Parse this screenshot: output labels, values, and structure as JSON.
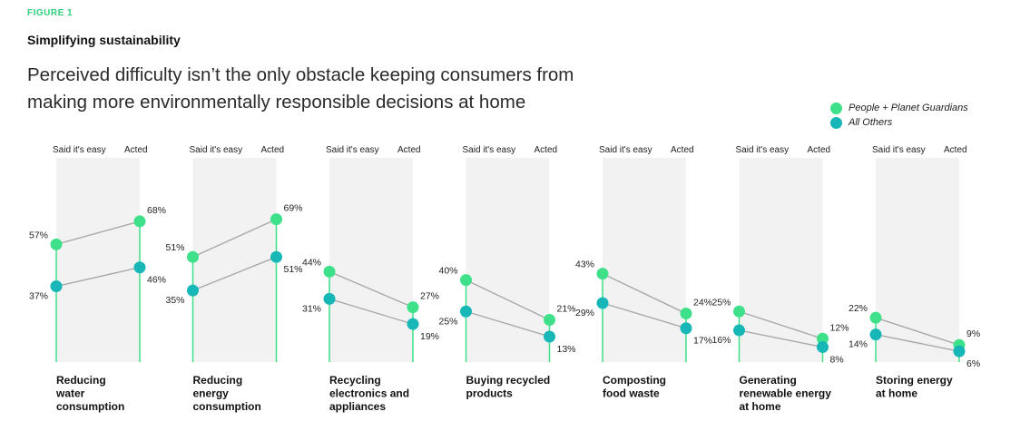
{
  "figure_label": "FIGURE 1",
  "title": "Simplifying sustainability",
  "subtitle": "Perceived difficulty isn’t the only obstacle keeping consumers from making more environmentally responsible decisions at home",
  "legend": {
    "guardians": "People + Planet Guardians",
    "others": "All Others"
  },
  "colors": {
    "guardians": "#3ee089",
    "others": "#16b7b6",
    "line": "#a9a9a9",
    "stem": "#3ee089",
    "band": "#f2f2f2"
  },
  "chart_data": {
    "type": "line",
    "col_left_label": "Said it's easy",
    "col_right_label": "Acted",
    "ylim": [
      0,
      80
    ],
    "panels": [
      {
        "category": [
          "Reducing",
          "water",
          "consumption"
        ],
        "guardians": [
          57,
          68
        ],
        "others": [
          37,
          46
        ],
        "labels": {
          "g_easy": "57%",
          "g_acted": "68%",
          "o_easy": "37%",
          "o_acted": "46%"
        }
      },
      {
        "category": [
          "Reducing",
          "energy",
          "consumption"
        ],
        "guardians": [
          51,
          69
        ],
        "others": [
          35,
          51
        ],
        "labels": {
          "g_easy": "51%",
          "g_acted": "69%",
          "o_easy": "35%",
          "o_acted": "51%"
        }
      },
      {
        "category": [
          "Recycling",
          "electronics and",
          "appliances"
        ],
        "guardians": [
          44,
          27
        ],
        "others": [
          31,
          19
        ],
        "labels": {
          "g_easy": "44%",
          "g_acted": "27%",
          "o_easy": "31%",
          "o_acted": "19%"
        }
      },
      {
        "category": [
          "Buying recycled",
          "products"
        ],
        "guardians": [
          40,
          21
        ],
        "others": [
          25,
          13
        ],
        "labels": {
          "g_easy": "40%",
          "g_acted": "21%",
          "o_easy": "25%",
          "o_acted": "13%"
        }
      },
      {
        "category": [
          "Composting",
          "food waste"
        ],
        "guardians": [
          43,
          24
        ],
        "others": [
          29,
          17
        ],
        "labels": {
          "g_easy": "43%",
          "g_acted": "24%",
          "o_easy": "29%",
          "o_acted": "17%"
        }
      },
      {
        "category": [
          "Generating",
          "renewable energy",
          "at home"
        ],
        "guardians": [
          25,
          12
        ],
        "others": [
          16,
          8
        ],
        "labels": {
          "g_easy": "25%",
          "g_acted": "12%",
          "o_easy": "16%",
          "o_acted": "8%"
        }
      },
      {
        "category": [
          "Storing energy",
          "at home"
        ],
        "guardians": [
          22,
          9
        ],
        "others": [
          14,
          6
        ],
        "labels": {
          "g_easy": "22%",
          "g_acted": "9%",
          "o_easy": "14%",
          "o_acted": "6%"
        }
      }
    ]
  }
}
